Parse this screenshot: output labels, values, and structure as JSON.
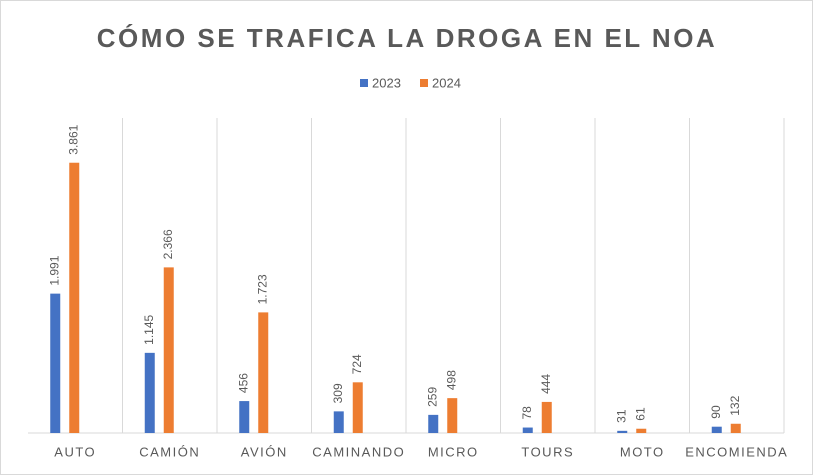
{
  "chart_data": {
    "type": "bar",
    "title": "CÓMO SE TRAFICA LA DROGA EN EL NOA",
    "categories": [
      "AUTO",
      "CAMIÓN",
      "AVIÓN",
      "CAMINANDO",
      "MICRO",
      "TOURS",
      "MOTO",
      "ENCOMIENDA"
    ],
    "series": [
      {
        "name": "2023",
        "color": "#4472c4",
        "values": [
          1991,
          1145,
          456,
          309,
          259,
          78,
          31,
          90
        ],
        "value_labels": [
          "1.991",
          "1.145",
          "456",
          "309",
          "259",
          "78",
          "31",
          "90"
        ]
      },
      {
        "name": "2024",
        "color": "#ed7d31",
        "values": [
          3861,
          2366,
          1723,
          724,
          498,
          444,
          61,
          132
        ],
        "value_labels": [
          "3.861",
          "2.366",
          "1.723",
          "724",
          "498",
          "444",
          "61",
          "132"
        ]
      }
    ],
    "ylim": [
      0,
      4500
    ],
    "legend": "top"
  }
}
